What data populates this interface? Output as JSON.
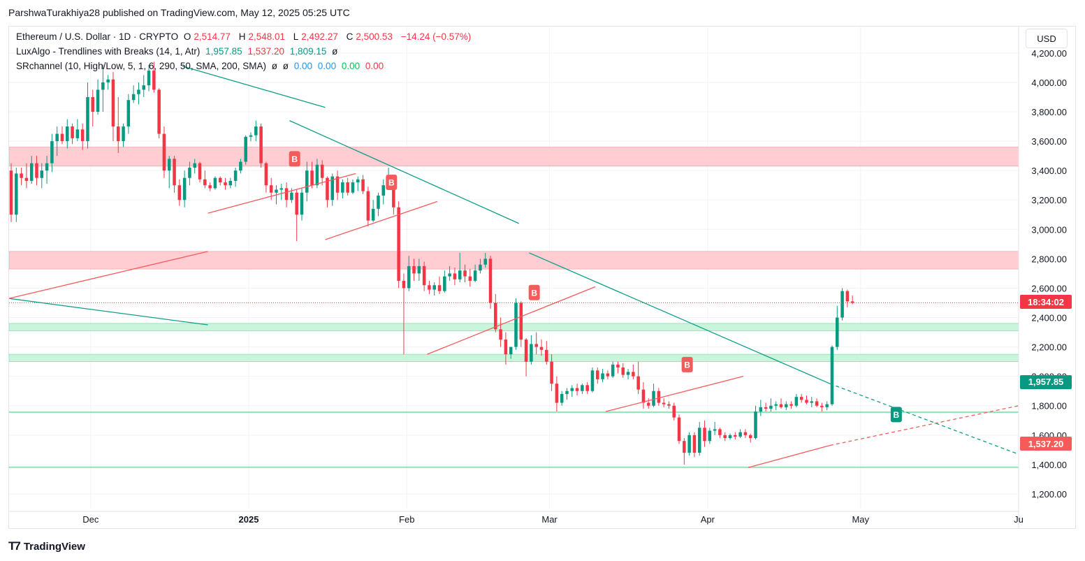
{
  "header": {
    "caption": "ParshwaTurakhiya28 published on TradingView.com, May 12, 2025 05:25 UTC"
  },
  "legend": {
    "symbol": "Ethereum / U.S. Dollar · 1D · CRYPTO",
    "open_label": "O",
    "open": "2,514.77",
    "high_label": "H",
    "high": "2,548.01",
    "low_label": "L",
    "low": "2,492.27",
    "close_label": "C",
    "close": "2,500.53",
    "change": "−14.24 (−0.57%)",
    "luxalgo_name": "LuxAlgo - Trendlines with Breaks (14, 1, Atr)",
    "luxalgo_v1": "1,957.85",
    "luxalgo_v2": "1,537.20",
    "luxalgo_v3": "1,809.15",
    "luxalgo_v4": "ø",
    "sr_name": "SRchannel (10, High/Low, 5, 1, 6, 290, 50, SMA, 200, SMA)",
    "sr_v1": "ø",
    "sr_v2": "ø",
    "sr_v3": "0.00",
    "sr_v4": "0.00",
    "sr_v5": "0.00",
    "sr_v6": "0.00"
  },
  "currency_button": "USD",
  "price_labels": {
    "countdown": "18:34:02",
    "upper_trend": "1,957.85",
    "lower_trend": "1,537.20"
  },
  "colors": {
    "up": "#089981",
    "down": "#f23645",
    "resistance_zone": "#ffcdd2",
    "support_zone": "#c8f5dc",
    "upper_trendline": "#0e9f87",
    "lower_trendline": "#f45b5b",
    "break_up_label": "#089981",
    "break_down_label": "#f45b5b",
    "countdown_bg": "#f23645",
    "upper_label_bg": "#089981",
    "lower_label_bg": "#f45b5b"
  },
  "footer": {
    "logo_icon": "tradingview-logo-icon",
    "logo_text": "TradingView"
  },
  "chart_data": {
    "type": "candlestick",
    "y_ticks": [
      "1,200.00",
      "1,400.00",
      "1,600.00",
      "1,800.00",
      "2,000.00",
      "2,200.00",
      "2,400.00",
      "2,600.00",
      "2,800.00",
      "3,000.00",
      "3,200.00",
      "3,400.00",
      "3,600.00",
      "3,800.00",
      "4,000.00",
      "4,200.00"
    ],
    "x_ticks": [
      {
        "label": "Dec",
        "date": "2024-12-01",
        "bold": false
      },
      {
        "label": "2025",
        "date": "2025-01-01",
        "bold": true
      },
      {
        "label": "Feb",
        "date": "2025-02-01",
        "bold": false
      },
      {
        "label": "Mar",
        "date": "2025-03-01",
        "bold": false
      },
      {
        "label": "Apr",
        "date": "2025-04-01",
        "bold": false
      },
      {
        "label": "May",
        "date": "2025-05-01",
        "bold": false
      },
      {
        "label": "Ju",
        "date": "2025-06-01",
        "bold": false
      }
    ],
    "ylim": [
      1100,
      4380
    ],
    "xlim": [
      "2024-11-15",
      "2025-06-01"
    ],
    "ohlc": [
      [
        3400,
        3450,
        3050,
        3100
      ],
      [
        3100,
        3420,
        3050,
        3380
      ],
      [
        3380,
        3420,
        3300,
        3350
      ],
      [
        3350,
        3450,
        3280,
        3330
      ],
      [
        3330,
        3500,
        3310,
        3450
      ],
      [
        3450,
        3500,
        3300,
        3350
      ],
      [
        3350,
        3450,
        3280,
        3400
      ],
      [
        3400,
        3500,
        3310,
        3450
      ],
      [
        3450,
        3650,
        3390,
        3600
      ],
      [
        3600,
        3700,
        3500,
        3650
      ],
      [
        3650,
        3700,
        3580,
        3600
      ],
      [
        3600,
        3750,
        3550,
        3700
      ],
      [
        3700,
        3720,
        3580,
        3620
      ],
      [
        3620,
        3750,
        3600,
        3680
      ],
      [
        3680,
        3720,
        3540,
        3600
      ],
      [
        3600,
        4000,
        3550,
        3900
      ],
      [
        3900,
        3950,
        3700,
        3800
      ],
      [
        3800,
        4020,
        3780,
        3950
      ],
      [
        3950,
        4120,
        3800,
        4000
      ],
      [
        4000,
        4050,
        3950,
        4020
      ],
      [
        4020,
        4070,
        3600,
        3700
      ],
      [
        3700,
        3900,
        3520,
        3600
      ],
      [
        3600,
        3720,
        3560,
        3700
      ],
      [
        3700,
        3920,
        3650,
        3880
      ],
      [
        3880,
        3980,
        3860,
        3920
      ],
      [
        3920,
        4000,
        3850,
        3950
      ],
      [
        3950,
        4050,
        3900,
        3980
      ],
      [
        3980,
        4120,
        3940,
        4080
      ],
      [
        4080,
        4140,
        3930,
        3950
      ],
      [
        3950,
        3960,
        3620,
        3650
      ],
      [
        3650,
        3700,
        3350,
        3400
      ],
      [
        3400,
        3500,
        3280,
        3480
      ],
      [
        3480,
        3500,
        3250,
        3300
      ],
      [
        3300,
        3340,
        3160,
        3200
      ],
      [
        3200,
        3400,
        3150,
        3350
      ],
      [
        3350,
        3460,
        3300,
        3420
      ],
      [
        3420,
        3480,
        3380,
        3450
      ],
      [
        3450,
        3460,
        3320,
        3340
      ],
      [
        3340,
        3400,
        3280,
        3300
      ],
      [
        3300,
        3320,
        3260,
        3280
      ],
      [
        3280,
        3360,
        3270,
        3350
      ],
      [
        3350,
        3360,
        3300,
        3320
      ],
      [
        3320,
        3350,
        3270,
        3300
      ],
      [
        3300,
        3350,
        3280,
        3330
      ],
      [
        3330,
        3420,
        3290,
        3400
      ],
      [
        3400,
        3480,
        3380,
        3460
      ],
      [
        3460,
        3640,
        3440,
        3630
      ],
      [
        3630,
        3660,
        3600,
        3640
      ],
      [
        3640,
        3740,
        3600,
        3700
      ],
      [
        3700,
        3720,
        3420,
        3450
      ],
      [
        3450,
        3460,
        3250,
        3300
      ],
      [
        3300,
        3350,
        3200,
        3250
      ],
      [
        3250,
        3300,
        3170,
        3270
      ],
      [
        3270,
        3310,
        3200,
        3280
      ],
      [
        3280,
        3320,
        3150,
        3200
      ],
      [
        3200,
        3280,
        3180,
        3250
      ],
      [
        3250,
        3270,
        2920,
        3100
      ],
      [
        3100,
        3280,
        3060,
        3250
      ],
      [
        3250,
        3460,
        3190,
        3400
      ],
      [
        3400,
        3460,
        3280,
        3300
      ],
      [
        3300,
        3480,
        3280,
        3440
      ],
      [
        3440,
        3470,
        3300,
        3350
      ],
      [
        3350,
        3360,
        3150,
        3200
      ],
      [
        3200,
        3380,
        3160,
        3360
      ],
      [
        3360,
        3400,
        3200,
        3250
      ],
      [
        3250,
        3340,
        3210,
        3320
      ],
      [
        3320,
        3350,
        3230,
        3250
      ],
      [
        3250,
        3340,
        3240,
        3320
      ],
      [
        3320,
        3360,
        3260,
        3340
      ],
      [
        3340,
        3370,
        3240,
        3260
      ],
      [
        3260,
        3290,
        3020,
        3060
      ],
      [
        3060,
        3200,
        3050,
        3140
      ],
      [
        3140,
        3250,
        3090,
        3230
      ],
      [
        3230,
        3340,
        3170,
        3300
      ],
      [
        3300,
        3420,
        3290,
        3330
      ],
      [
        3330,
        3340,
        3100,
        3150
      ],
      [
        3150,
        3190,
        2600,
        2650
      ],
      [
        2650,
        2700,
        2150,
        2600
      ],
      [
        2600,
        2820,
        2580,
        2750
      ],
      [
        2750,
        2800,
        2650,
        2700
      ],
      [
        2700,
        2800,
        2650,
        2750
      ],
      [
        2750,
        2780,
        2580,
        2620
      ],
      [
        2620,
        2650,
        2560,
        2590
      ],
      [
        2590,
        2640,
        2550,
        2620
      ],
      [
        2620,
        2680,
        2560,
        2580
      ],
      [
        2580,
        2720,
        2570,
        2680
      ],
      [
        2680,
        2750,
        2650,
        2700
      ],
      [
        2700,
        2740,
        2620,
        2660
      ],
      [
        2660,
        2840,
        2640,
        2720
      ],
      [
        2720,
        2760,
        2640,
        2680
      ],
      [
        2680,
        2730,
        2610,
        2650
      ],
      [
        2650,
        2760,
        2640,
        2720
      ],
      [
        2720,
        2800,
        2700,
        2760
      ],
      [
        2760,
        2840,
        2740,
        2800
      ],
      [
        2800,
        2820,
        2460,
        2500
      ],
      [
        2500,
        2560,
        2300,
        2320
      ],
      [
        2320,
        2400,
        2200,
        2250
      ],
      [
        2250,
        2300,
        2080,
        2150
      ],
      [
        2150,
        2200,
        2120,
        2200
      ],
      [
        2200,
        2530,
        2180,
        2500
      ],
      [
        2500,
        2510,
        2200,
        2250
      ],
      [
        2250,
        2260,
        2000,
        2100
      ],
      [
        2100,
        2280,
        2080,
        2220
      ],
      [
        2220,
        2300,
        2150,
        2200
      ],
      [
        2200,
        2250,
        2140,
        2180
      ],
      [
        2180,
        2240,
        2080,
        2100
      ],
      [
        2100,
        2150,
        1900,
        1950
      ],
      [
        1950,
        2000,
        1760,
        1820
      ],
      [
        1820,
        1900,
        1800,
        1880
      ],
      [
        1880,
        1920,
        1840,
        1900
      ],
      [
        1900,
        1940,
        1860,
        1920
      ],
      [
        1920,
        1950,
        1870,
        1900
      ],
      [
        1900,
        1950,
        1880,
        1940
      ],
      [
        1940,
        1960,
        1880,
        1900
      ],
      [
        1900,
        2060,
        1890,
        2040
      ],
      [
        2040,
        2060,
        1950,
        1980
      ],
      [
        1980,
        2050,
        1960,
        2020
      ],
      [
        2020,
        2040,
        1980,
        2000
      ],
      [
        2000,
        2100,
        1990,
        2080
      ],
      [
        2080,
        2100,
        2020,
        2060
      ],
      [
        2060,
        2090,
        1990,
        2010
      ],
      [
        2010,
        2050,
        1980,
        2030
      ],
      [
        2030,
        2080,
        1980,
        2000
      ],
      [
        2000,
        2100,
        1880,
        1910
      ],
      [
        1910,
        1960,
        1780,
        1820
      ],
      [
        1820,
        1850,
        1780,
        1800
      ],
      [
        1800,
        1950,
        1790,
        1900
      ],
      [
        1900,
        1920,
        1800,
        1820
      ],
      [
        1820,
        1850,
        1790,
        1810
      ],
      [
        1810,
        1830,
        1780,
        1800
      ],
      [
        1800,
        1820,
        1700,
        1720
      ],
      [
        1720,
        1740,
        1540,
        1560
      ],
      [
        1560,
        1580,
        1400,
        1480
      ],
      [
        1480,
        1620,
        1460,
        1600
      ],
      [
        1600,
        1620,
        1450,
        1480
      ],
      [
        1480,
        1690,
        1460,
        1650
      ],
      [
        1650,
        1700,
        1520,
        1560
      ],
      [
        1560,
        1650,
        1540,
        1630
      ],
      [
        1630,
        1690,
        1600,
        1640
      ],
      [
        1640,
        1650,
        1580,
        1600
      ],
      [
        1600,
        1620,
        1560,
        1580
      ],
      [
        1580,
        1610,
        1570,
        1600
      ],
      [
        1600,
        1620,
        1570,
        1590
      ],
      [
        1590,
        1640,
        1580,
        1620
      ],
      [
        1620,
        1640,
        1580,
        1600
      ],
      [
        1600,
        1610,
        1550,
        1580
      ],
      [
        1580,
        1800,
        1570,
        1760
      ],
      [
        1760,
        1840,
        1730,
        1790
      ],
      [
        1790,
        1820,
        1760,
        1780
      ],
      [
        1780,
        1850,
        1760,
        1800
      ],
      [
        1800,
        1830,
        1770,
        1810
      ],
      [
        1810,
        1850,
        1780,
        1790
      ],
      [
        1790,
        1830,
        1770,
        1810
      ],
      [
        1810,
        1830,
        1780,
        1800
      ],
      [
        1800,
        1880,
        1790,
        1860
      ],
      [
        1860,
        1880,
        1820,
        1840
      ],
      [
        1840,
        1870,
        1810,
        1820
      ],
      [
        1820,
        1860,
        1790,
        1830
      ],
      [
        1830,
        1850,
        1790,
        1800
      ],
      [
        1800,
        1820,
        1760,
        1790
      ],
      [
        1790,
        1830,
        1770,
        1810
      ],
      [
        1810,
        2210,
        1800,
        2200
      ],
      [
        2200,
        2480,
        2180,
        2400
      ],
      [
        2400,
        2600,
        2380,
        2580
      ],
      [
        2580,
        2590,
        2470,
        2510
      ],
      [
        2510,
        2550,
        2490,
        2500
      ]
    ],
    "trendlines": [
      {
        "color": "teal",
        "points": [
          [
            "2024-11-15",
            2530
          ],
          [
            "2024-12-24",
            2350
          ]
        ]
      },
      {
        "color": "red",
        "points": [
          [
            "2024-11-15",
            2530
          ],
          [
            "2024-12-24",
            2850
          ]
        ]
      },
      {
        "color": "teal",
        "points": [
          [
            "2024-12-19",
            4110
          ],
          [
            "2025-01-16",
            3830
          ]
        ]
      },
      {
        "color": "red",
        "points": [
          [
            "2024-12-24",
            3110
          ],
          [
            "2025-01-22",
            3380
          ]
        ]
      },
      {
        "color": "teal",
        "points": [
          [
            "2025-01-09",
            3740
          ],
          [
            "2025-02-23",
            3040
          ]
        ]
      },
      {
        "color": "red",
        "points": [
          [
            "2025-01-16",
            2930
          ],
          [
            "2025-02-07",
            3190
          ]
        ]
      },
      {
        "color": "red",
        "points": [
          [
            "2025-02-05",
            2150
          ],
          [
            "2025-03-10",
            2610
          ]
        ]
      },
      {
        "color": "teal",
        "points": [
          [
            "2025-02-25",
            2840
          ],
          [
            "2025-04-25",
            1950
          ]
        ]
      },
      {
        "color": "teal",
        "dashed": true,
        "points": [
          [
            "2025-04-25",
            1950
          ],
          [
            "2025-06-01",
            1470
          ]
        ]
      },
      {
        "color": "red",
        "points": [
          [
            "2025-03-12",
            1760
          ],
          [
            "2025-04-08",
            2000
          ]
        ]
      },
      {
        "color": "red",
        "points": [
          [
            "2025-04-09",
            1380
          ],
          [
            "2025-04-25",
            1530
          ]
        ]
      },
      {
        "color": "red",
        "dashed": true,
        "points": [
          [
            "2025-04-25",
            1530
          ],
          [
            "2025-06-01",
            1800
          ]
        ]
      }
    ],
    "zones": [
      {
        "type": "resistance",
        "range": [
          3430,
          3560
        ]
      },
      {
        "type": "resistance",
        "range": [
          2730,
          2850
        ]
      },
      {
        "type": "support",
        "range": [
          2310,
          2360
        ]
      },
      {
        "type": "support",
        "range": [
          2100,
          2150
        ]
      },
      {
        "type": "support",
        "range": [
          1755,
          1760
        ]
      },
      {
        "type": "support",
        "range": [
          1380,
          1385
        ]
      }
    ],
    "break_labels": [
      {
        "text": "B",
        "date": "2025-01-10",
        "price": 3480,
        "dir": "down"
      },
      {
        "text": "B",
        "date": "2025-01-29",
        "price": 3320,
        "dir": "down"
      },
      {
        "text": "B",
        "date": "2025-02-26",
        "price": 2570,
        "dir": "down"
      },
      {
        "text": "B",
        "date": "2025-03-28",
        "price": 2080,
        "dir": "down"
      },
      {
        "text": "B",
        "date": "2025-05-08",
        "price": 1740,
        "dir": "up"
      }
    ],
    "current_price": 2500.53
  }
}
